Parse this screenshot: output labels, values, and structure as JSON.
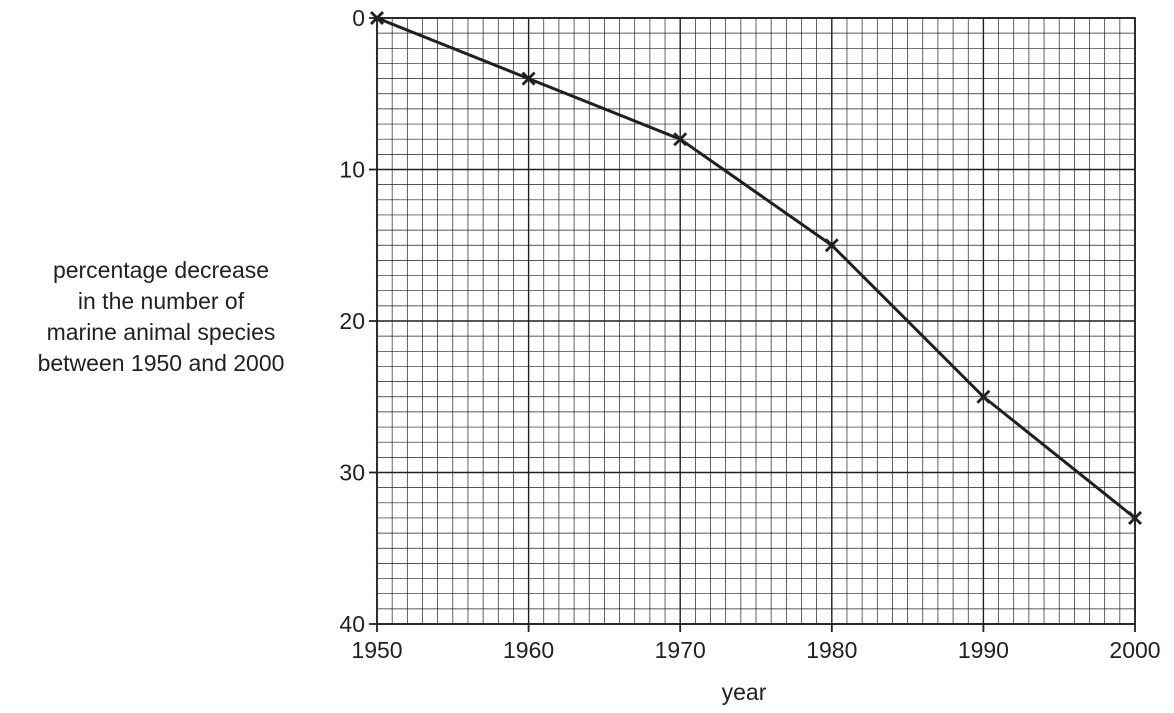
{
  "chart_data": {
    "type": "line",
    "xlabel": "year",
    "ylabel_lines": [
      "percentage decrease",
      "in the number of",
      "marine animal species",
      "between 1950 and 2000"
    ],
    "x": [
      1950,
      1960,
      1970,
      1980,
      1990,
      2000
    ],
    "y": [
      0,
      4,
      8,
      15,
      25,
      33
    ],
    "xlim": [
      1950,
      2000
    ],
    "ylim": [
      0,
      40
    ],
    "y_inverted": true,
    "x_ticks": [
      "1950",
      "1960",
      "1970",
      "1980",
      "1990",
      "2000"
    ],
    "y_ticks": [
      "0",
      "10",
      "20",
      "30",
      "40"
    ],
    "marker": "cross",
    "grid": true,
    "grid_major_x_step": 10,
    "grid_major_y_step": 10,
    "grid_minor_x_step": 1,
    "grid_minor_y_step": 1,
    "colors": {
      "line": "#231f20",
      "grid": "#231f20",
      "text": "#231f20"
    }
  }
}
